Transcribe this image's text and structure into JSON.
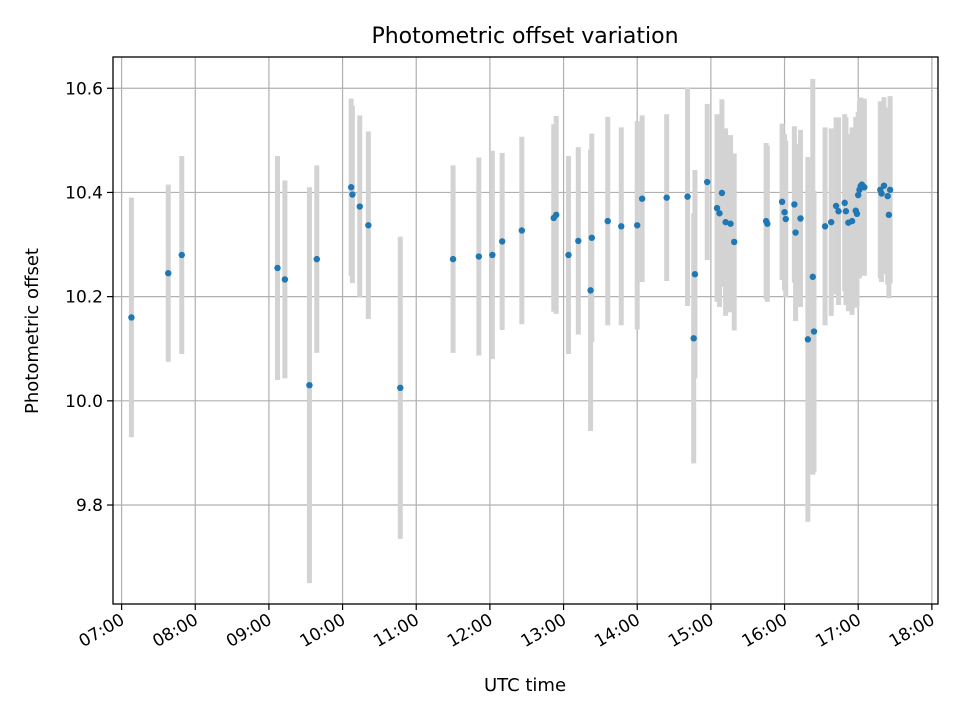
{
  "chart_data": {
    "type": "scatter",
    "title": "Photometric offset variation",
    "xlabel": "UTC time",
    "ylabel": "Photometric offset",
    "grid": true,
    "x_unit": "UTC time (HH:MM)",
    "xlim": [
      "06:53",
      "18:05"
    ],
    "ylim": [
      9.61,
      10.66
    ],
    "x_ticks": [
      "07:00",
      "08:00",
      "09:00",
      "10:00",
      "11:00",
      "12:00",
      "13:00",
      "14:00",
      "15:00",
      "16:00",
      "17:00",
      "18:00"
    ],
    "y_ticks": [
      9.8,
      10.0,
      10.2,
      10.4,
      10.6
    ],
    "y_tick_labels": [
      "9.8",
      "10.0",
      "10.2",
      "10.4",
      "10.6"
    ],
    "colors": {
      "points": "#1f77b4",
      "errorbars": "#d3d3d3",
      "grid": "#b0b0b0"
    },
    "series": [
      {
        "x": [
          "07:08",
          "07:38",
          "07:49",
          "09:07",
          "09:13",
          "09:33",
          "09:39",
          "10:07",
          "10:08",
          "10:14",
          "10:21",
          "10:47",
          "11:30",
          "11:51",
          "12:02",
          "12:10",
          "12:26",
          "12:52",
          "12:54",
          "13:04",
          "13:12",
          "13:22",
          "13:23",
          "13:36",
          "13:47",
          "14:00",
          "14:04",
          "14:24",
          "14:41",
          "14:46",
          "14:47",
          "14:57",
          "15:05",
          "15:07",
          "15:09",
          "15:12",
          "15:16",
          "15:19",
          "15:45",
          "15:46",
          "15:58",
          "16:00",
          "16:01",
          "16:08",
          "16:09",
          "16:13",
          "16:19",
          "16:23",
          "16:24",
          "16:33",
          "16:38",
          "16:42",
          "16:44",
          "16:49",
          "16:50",
          "16:52",
          "16:55",
          "16:58",
          "16:59",
          "17:00",
          "17:01",
          "17:02",
          "17:03",
          "17:05",
          "17:18",
          "17:19",
          "17:21",
          "17:24",
          "17:25",
          "17:26"
        ],
        "y": [
          10.16,
          10.245,
          10.28,
          10.255,
          10.233,
          10.03,
          10.272,
          10.41,
          10.396,
          10.373,
          10.337,
          10.025,
          10.272,
          10.277,
          10.28,
          10.306,
          10.327,
          10.351,
          10.357,
          10.28,
          10.307,
          10.212,
          10.313,
          10.345,
          10.335,
          10.337,
          10.388,
          10.39,
          10.392,
          10.12,
          10.243,
          10.42,
          10.37,
          10.36,
          10.399,
          10.343,
          10.34,
          10.305,
          10.345,
          10.34,
          10.382,
          10.362,
          10.349,
          10.377,
          10.323,
          10.35,
          10.118,
          10.238,
          10.133,
          10.335,
          10.343,
          10.374,
          10.364,
          10.38,
          10.364,
          10.342,
          10.345,
          10.365,
          10.359,
          10.395,
          10.405,
          10.412,
          10.415,
          10.41,
          10.405,
          10.398,
          10.413,
          10.393,
          10.357,
          10.405
        ],
        "err": [
          0.23,
          0.17,
          0.19,
          0.215,
          0.19,
          0.38,
          0.18,
          0.17,
          0.17,
          0.175,
          0.18,
          0.29,
          0.18,
          0.19,
          0.2,
          0.17,
          0.18,
          0.18,
          0.19,
          0.19,
          0.18,
          0.27,
          0.2,
          0.2,
          0.19,
          0.2,
          0.16,
          0.16,
          0.21,
          0.24,
          0.2,
          0.15,
          0.18,
          0.18,
          0.18,
          0.18,
          0.17,
          0.17,
          0.15,
          0.15,
          0.15,
          0.15,
          0.15,
          0.15,
          0.17,
          0.17,
          0.35,
          0.38,
          0.27,
          0.19,
          0.18,
          0.17,
          0.18,
          0.17,
          0.18,
          0.17,
          0.18,
          0.18,
          0.18,
          0.16,
          0.17,
          0.17,
          0.16,
          0.17,
          0.17,
          0.17,
          0.17,
          0.17,
          0.16,
          0.18
        ]
      }
    ]
  }
}
